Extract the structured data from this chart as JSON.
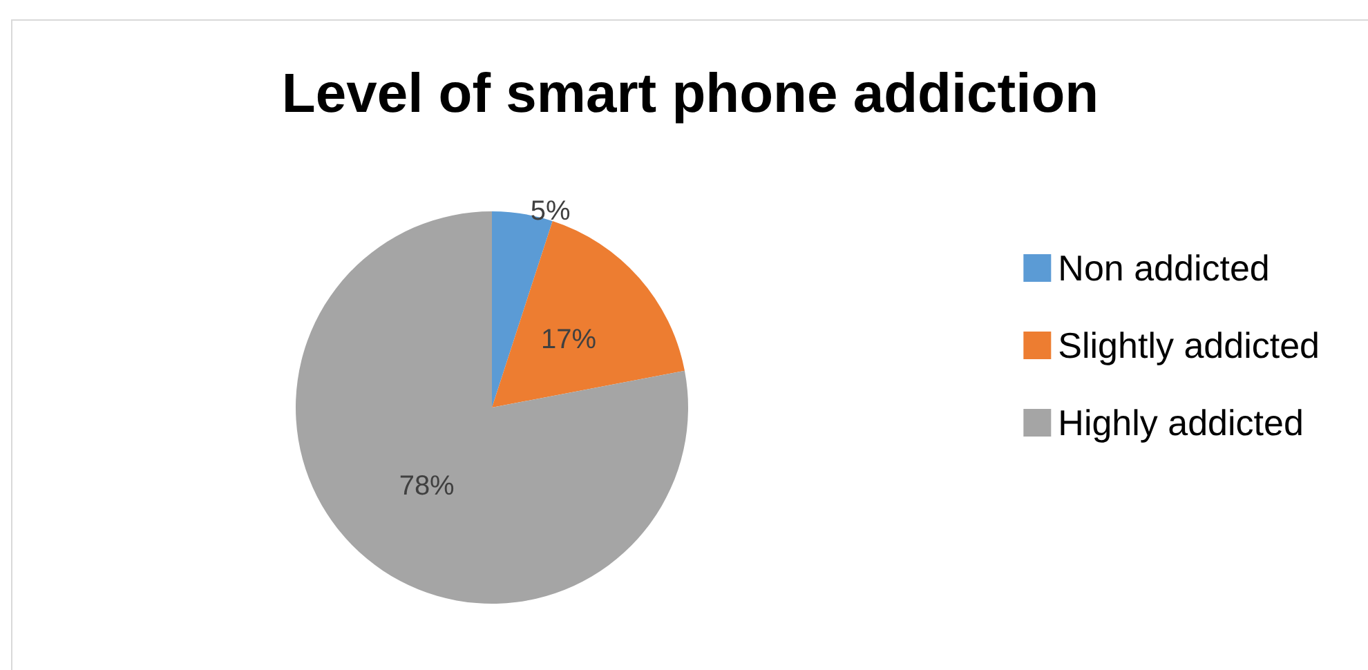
{
  "chart_data": {
    "type": "pie",
    "title": "Level of smart phone addiction",
    "categories": [
      "Non addicted",
      "Slightly addicted",
      "Highly addicted"
    ],
    "values": [
      5,
      17,
      78
    ],
    "colors": [
      "#5b9bd5",
      "#ed7d31",
      "#a5a5a5"
    ],
    "value_labels": [
      "5%",
      "17%",
      "78%"
    ],
    "legend": "right"
  }
}
